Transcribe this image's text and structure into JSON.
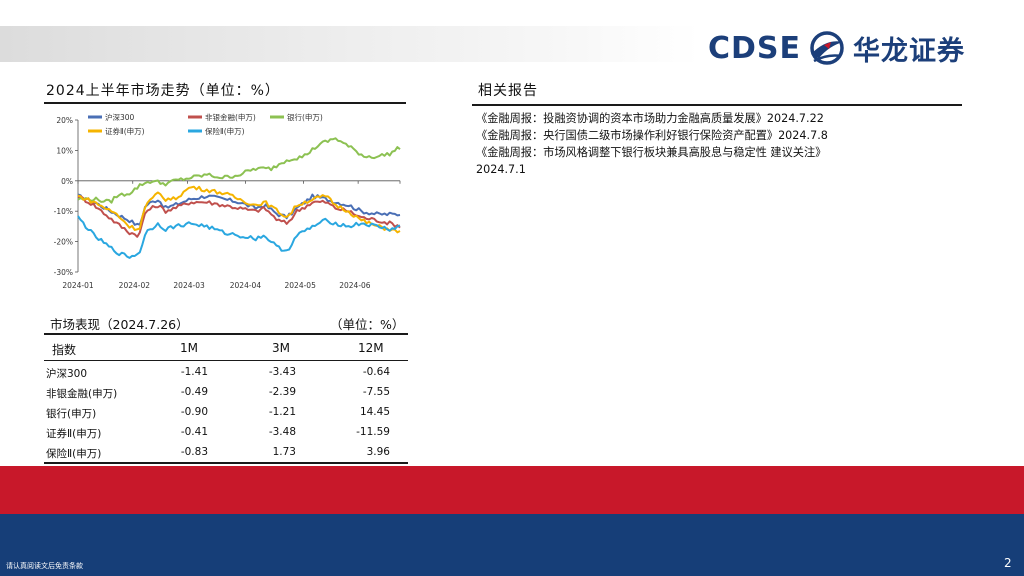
{
  "header": {
    "logo_text": "CDSE",
    "logo_cn": "华龙证券",
    "colors": {
      "navy": "#1c3f7a",
      "red": "#c8182a"
    }
  },
  "chart_section": {
    "title": "2024上半年市场走势（单位：%）"
  },
  "chart_data": {
    "type": "line",
    "ylim": [
      -30,
      20
    ],
    "y_ticks": [
      "20%",
      "10%",
      "0%",
      "-10%",
      "-20%",
      "-30%"
    ],
    "x_ticks": [
      "2024-01",
      "2024-02",
      "2024-03",
      "2024-04",
      "2024-05",
      "2024-06"
    ],
    "grid": false,
    "legend_position": "top-left",
    "series": [
      {
        "name": "沪深300",
        "color": "#4a6fb5",
        "keyframes": [
          [
            0,
            -5
          ],
          [
            5,
            -7
          ],
          [
            12,
            -11
          ],
          [
            16,
            -13
          ],
          [
            19,
            -15
          ],
          [
            21,
            -8
          ],
          [
            25,
            -6
          ],
          [
            27,
            -9
          ],
          [
            30,
            -8
          ],
          [
            35,
            -6
          ],
          [
            40,
            -5
          ],
          [
            45,
            -6
          ],
          [
            50,
            -7
          ],
          [
            55,
            -9
          ],
          [
            58,
            -8
          ],
          [
            62,
            -11
          ],
          [
            65,
            -12
          ],
          [
            68,
            -9
          ],
          [
            73,
            -5
          ],
          [
            77,
            -6
          ],
          [
            80,
            -7
          ],
          [
            84,
            -8
          ],
          [
            88,
            -10
          ],
          [
            93,
            -11
          ],
          [
            97,
            -11
          ],
          [
            100,
            -11
          ]
        ]
      },
      {
        "name": "非银金融(申万)",
        "color": "#c0504d",
        "keyframes": [
          [
            0,
            -5
          ],
          [
            5,
            -8
          ],
          [
            12,
            -14
          ],
          [
            16,
            -17
          ],
          [
            19,
            -18
          ],
          [
            21,
            -10
          ],
          [
            25,
            -8
          ],
          [
            27,
            -10
          ],
          [
            30,
            -9
          ],
          [
            35,
            -7
          ],
          [
            40,
            -7
          ],
          [
            45,
            -8
          ],
          [
            50,
            -9
          ],
          [
            55,
            -10
          ],
          [
            58,
            -9
          ],
          [
            62,
            -13
          ],
          [
            65,
            -14
          ],
          [
            68,
            -10
          ],
          [
            73,
            -7
          ],
          [
            77,
            -7
          ],
          [
            80,
            -9
          ],
          [
            84,
            -10
          ],
          [
            88,
            -12
          ],
          [
            93,
            -13
          ],
          [
            97,
            -14
          ],
          [
            100,
            -15
          ]
        ]
      },
      {
        "name": "银行(申万)",
        "color": "#8cc152",
        "keyframes": [
          [
            0,
            -6
          ],
          [
            5,
            -6
          ],
          [
            10,
            -7
          ],
          [
            12,
            -5
          ],
          [
            16,
            -4
          ],
          [
            20,
            -1
          ],
          [
            23,
            0
          ],
          [
            27,
            -1
          ],
          [
            30,
            0
          ],
          [
            35,
            1
          ],
          [
            40,
            2
          ],
          [
            45,
            1
          ],
          [
            50,
            2
          ],
          [
            55,
            4
          ],
          [
            60,
            4
          ],
          [
            65,
            7
          ],
          [
            70,
            8
          ],
          [
            75,
            12
          ],
          [
            80,
            14
          ],
          [
            83,
            12
          ],
          [
            86,
            10
          ],
          [
            89,
            8
          ],
          [
            93,
            8
          ],
          [
            97,
            9
          ],
          [
            100,
            11
          ]
        ]
      },
      {
        "name": "证券Ⅱ(申万)",
        "color": "#f5b400",
        "keyframes": [
          [
            0,
            -5
          ],
          [
            5,
            -7
          ],
          [
            12,
            -11
          ],
          [
            16,
            -15
          ],
          [
            19,
            -16
          ],
          [
            21,
            -8
          ],
          [
            25,
            -4
          ],
          [
            27,
            -6
          ],
          [
            30,
            -6
          ],
          [
            35,
            -2
          ],
          [
            40,
            -3
          ],
          [
            45,
            -4
          ],
          [
            50,
            -6
          ],
          [
            55,
            -8
          ],
          [
            58,
            -7
          ],
          [
            62,
            -10
          ],
          [
            65,
            -12
          ],
          [
            68,
            -8
          ],
          [
            73,
            -6
          ],
          [
            77,
            -5
          ],
          [
            80,
            -8
          ],
          [
            84,
            -10
          ],
          [
            88,
            -13
          ],
          [
            93,
            -15
          ],
          [
            97,
            -16
          ],
          [
            100,
            -17
          ]
        ]
      },
      {
        "name": "保险Ⅱ(申万)",
        "color": "#2aa7e0",
        "keyframes": [
          [
            0,
            -12
          ],
          [
            5,
            -18
          ],
          [
            10,
            -22
          ],
          [
            13,
            -24
          ],
          [
            16,
            -25
          ],
          [
            19,
            -24
          ],
          [
            21,
            -17
          ],
          [
            25,
            -14
          ],
          [
            27,
            -16
          ],
          [
            30,
            -15
          ],
          [
            35,
            -14
          ],
          [
            40,
            -15
          ],
          [
            45,
            -17
          ],
          [
            50,
            -18
          ],
          [
            55,
            -19
          ],
          [
            58,
            -18
          ],
          [
            62,
            -22
          ],
          [
            65,
            -23
          ],
          [
            68,
            -18
          ],
          [
            73,
            -15
          ],
          [
            77,
            -13
          ],
          [
            80,
            -14
          ],
          [
            84,
            -15
          ],
          [
            88,
            -14
          ],
          [
            93,
            -15
          ],
          [
            97,
            -16
          ],
          [
            100,
            -15
          ]
        ]
      }
    ]
  },
  "related_reports": {
    "title": "相关报告",
    "items": [
      "《金融周报：投融资协调的资本市场助力金融高质量发展》2024.7.22",
      "《金融周报：央行国债二级市场操作利好银行保险资产配置》2024.7.8",
      "《金融周报：市场风格调整下银行板块兼具高股息与稳定性 建议关注》",
      "2024.7.1"
    ]
  },
  "performance": {
    "title": "市场表现（2024.7.26）",
    "unit": "（单位：%）",
    "headers": {
      "name": "指数",
      "m1": "1M",
      "m3": "3M",
      "m12": "12M"
    },
    "rows": [
      {
        "name": "沪深300",
        "m1": "-1.41",
        "m3": "-3.43",
        "m12": "-0.64"
      },
      {
        "name": "非银金融(申万)",
        "m1": "-0.49",
        "m3": "-2.39",
        "m12": "-7.55"
      },
      {
        "name": "银行(申万)",
        "m1": "-0.90",
        "m3": "-1.21",
        "m12": "14.45"
      },
      {
        "name": "证券Ⅱ(申万)",
        "m1": "-0.41",
        "m3": "-3.48",
        "m12": "-11.59"
      },
      {
        "name": "保险Ⅱ(申万)",
        "m1": "-0.83",
        "m3": "1.73",
        "m12": "3.96"
      }
    ]
  },
  "footer": {
    "disclaimer": "请认真阅读文后免责条款",
    "page": "2"
  }
}
